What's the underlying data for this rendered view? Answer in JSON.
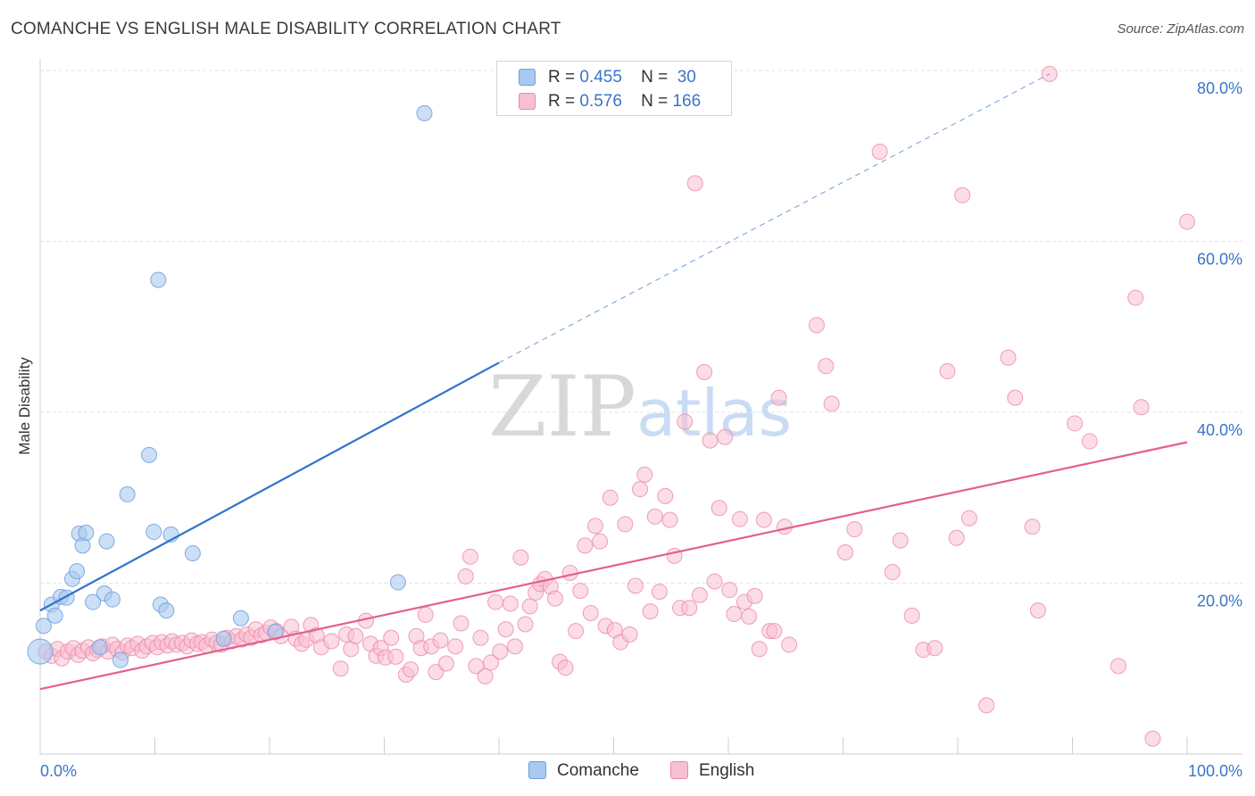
{
  "header": {
    "title": "COMANCHE VS ENGLISH MALE DISABILITY CORRELATION CHART",
    "source": "Source: ZipAtlas.com"
  },
  "watermark": {
    "zip": "ZIP",
    "atlas": "atlas"
  },
  "stats": [
    {
      "r_label": "R =",
      "r_value": "0.455",
      "n_label": "N =",
      "n_value": "30",
      "color": "#a9c9f0",
      "border": "#6d9fdc"
    },
    {
      "r_label": "R =",
      "r_value": "0.576",
      "n_label": "N =",
      "n_value": "166",
      "color": "#f9c0d2",
      "border": "#e889a8"
    }
  ],
  "legend": [
    {
      "label": "Comanche",
      "color": "#a9c9f0",
      "border": "#6d9fdc"
    },
    {
      "label": "English",
      "color": "#f9c0d2",
      "border": "#e889a8"
    }
  ],
  "colors": {
    "comanche_fill": "#a9c9f0",
    "comanche_stroke": "#6d9fdc",
    "comanche_line": "#2f73cc",
    "english_fill": "#f9c0d2",
    "english_stroke": "#e889a8",
    "english_line": "#e3608c",
    "axis_label": "#3a74c8",
    "grid": "#e3e3e3"
  },
  "chart_data": {
    "type": "scatter",
    "title": "COMANCHE VS ENGLISH MALE DISABILITY CORRELATION CHART",
    "xlabel": "",
    "ylabel": "Male Disability",
    "xlim": [
      0,
      100
    ],
    "ylim": [
      0,
      80
    ],
    "x_tick_labels": [
      {
        "value": 0,
        "label": "0.0%"
      },
      {
        "value": 100,
        "label": "100.0%"
      }
    ],
    "y_tick_labels": [
      {
        "value": 20,
        "label": "20.0%"
      },
      {
        "value": 40,
        "label": "40.0%"
      },
      {
        "value": 60,
        "label": "60.0%"
      },
      {
        "value": 80,
        "label": "80.0%"
      }
    ],
    "grid": true,
    "series": [
      {
        "name": "Comanche",
        "r": 0.455,
        "n": 30,
        "trend": {
          "x0": 0,
          "y0": 16.8,
          "x1": 40,
          "y1": 45.8,
          "dashed_to_x": 88,
          "dashed_to_y": 79.6
        },
        "points": [
          [
            0.0,
            12.0
          ],
          [
            0.3,
            15.0
          ],
          [
            1.0,
            17.5
          ],
          [
            1.3,
            16.2
          ],
          [
            1.8,
            18.4
          ],
          [
            2.3,
            18.3
          ],
          [
            2.8,
            20.5
          ],
          [
            3.2,
            21.4
          ],
          [
            3.4,
            25.8
          ],
          [
            3.7,
            24.4
          ],
          [
            4.0,
            25.9
          ],
          [
            4.6,
            17.8
          ],
          [
            5.6,
            18.8
          ],
          [
            5.8,
            24.9
          ],
          [
            6.3,
            18.1
          ],
          [
            5.2,
            12.5
          ],
          [
            7.0,
            11.0
          ],
          [
            7.6,
            30.4
          ],
          [
            9.5,
            35.0
          ],
          [
            9.9,
            26.0
          ],
          [
            10.3,
            55.5
          ],
          [
            10.5,
            17.5
          ],
          [
            11.0,
            16.8
          ],
          [
            11.4,
            25.7
          ],
          [
            13.3,
            23.5
          ],
          [
            16.0,
            13.5
          ],
          [
            17.5,
            15.9
          ],
          [
            20.5,
            14.3
          ],
          [
            31.2,
            20.1
          ],
          [
            33.5,
            75.0
          ]
        ]
      },
      {
        "name": "English",
        "r": 0.576,
        "n": 166,
        "trend": {
          "x0": 0,
          "y0": 7.6,
          "x1": 100,
          "y1": 36.5
        },
        "points": [
          [
            0.5,
            12.0
          ],
          [
            1.0,
            11.5
          ],
          [
            1.5,
            12.3
          ],
          [
            1.9,
            11.2
          ],
          [
            2.4,
            12.0
          ],
          [
            2.9,
            12.4
          ],
          [
            3.3,
            11.6
          ],
          [
            3.7,
            12.1
          ],
          [
            4.2,
            12.5
          ],
          [
            4.6,
            11.8
          ],
          [
            5.0,
            12.2
          ],
          [
            5.4,
            12.6
          ],
          [
            5.9,
            12.0
          ],
          [
            6.3,
            12.8
          ],
          [
            6.7,
            12.3
          ],
          [
            7.2,
            11.9
          ],
          [
            7.6,
            12.7
          ],
          [
            8.0,
            12.4
          ],
          [
            8.5,
            12.9
          ],
          [
            8.9,
            12.1
          ],
          [
            9.3,
            12.6
          ],
          [
            9.8,
            13.0
          ],
          [
            10.2,
            12.5
          ],
          [
            10.6,
            13.1
          ],
          [
            11.1,
            12.7
          ],
          [
            11.5,
            13.2
          ],
          [
            11.9,
            12.8
          ],
          [
            12.4,
            13.0
          ],
          [
            12.8,
            12.6
          ],
          [
            13.2,
            13.3
          ],
          [
            13.7,
            12.9
          ],
          [
            14.1,
            13.1
          ],
          [
            14.5,
            12.7
          ],
          [
            15.0,
            13.4
          ],
          [
            15.4,
            13.0
          ],
          [
            15.8,
            12.8
          ],
          [
            16.3,
            13.6
          ],
          [
            16.7,
            13.2
          ],
          [
            17.1,
            13.8
          ],
          [
            17.6,
            13.4
          ],
          [
            18.0,
            14.0
          ],
          [
            18.4,
            13.6
          ],
          [
            18.8,
            14.6
          ],
          [
            19.3,
            13.9
          ],
          [
            19.7,
            14.2
          ],
          [
            20.1,
            14.8
          ],
          [
            20.6,
            14.4
          ],
          [
            21.0,
            13.8
          ],
          [
            21.9,
            14.9
          ],
          [
            22.3,
            13.5
          ],
          [
            22.8,
            12.9
          ],
          [
            23.2,
            13.4
          ],
          [
            23.6,
            15.1
          ],
          [
            24.1,
            13.9
          ],
          [
            24.5,
            12.5
          ],
          [
            25.4,
            13.2
          ],
          [
            26.2,
            10.0
          ],
          [
            26.7,
            14.0
          ],
          [
            27.1,
            12.3
          ],
          [
            27.5,
            13.8
          ],
          [
            28.4,
            15.6
          ],
          [
            28.8,
            12.9
          ],
          [
            29.3,
            11.5
          ],
          [
            29.7,
            12.4
          ],
          [
            30.1,
            11.3
          ],
          [
            30.6,
            13.6
          ],
          [
            31.0,
            11.4
          ],
          [
            31.9,
            9.3
          ],
          [
            32.3,
            9.9
          ],
          [
            32.8,
            13.8
          ],
          [
            33.2,
            12.4
          ],
          [
            33.6,
            16.3
          ],
          [
            34.1,
            12.6
          ],
          [
            34.5,
            9.6
          ],
          [
            34.9,
            13.3
          ],
          [
            35.4,
            10.6
          ],
          [
            36.2,
            12.6
          ],
          [
            36.7,
            15.3
          ],
          [
            37.1,
            20.8
          ],
          [
            37.5,
            23.1
          ],
          [
            38.0,
            10.3
          ],
          [
            38.4,
            13.6
          ],
          [
            38.8,
            9.1
          ],
          [
            39.3,
            10.7
          ],
          [
            39.7,
            17.8
          ],
          [
            40.1,
            12.0
          ],
          [
            40.6,
            14.6
          ],
          [
            41.0,
            17.6
          ],
          [
            41.4,
            12.6
          ],
          [
            41.9,
            23.0
          ],
          [
            42.3,
            15.2
          ],
          [
            42.7,
            17.3
          ],
          [
            43.2,
            18.9
          ],
          [
            43.6,
            19.9
          ],
          [
            44.0,
            20.5
          ],
          [
            44.5,
            19.6
          ],
          [
            44.9,
            18.2
          ],
          [
            45.3,
            10.8
          ],
          [
            45.8,
            10.1
          ],
          [
            46.2,
            21.2
          ],
          [
            46.7,
            14.4
          ],
          [
            47.1,
            19.1
          ],
          [
            47.5,
            24.4
          ],
          [
            48.0,
            16.5
          ],
          [
            48.4,
            26.7
          ],
          [
            48.8,
            24.9
          ],
          [
            49.3,
            15.0
          ],
          [
            49.7,
            30.0
          ],
          [
            50.1,
            14.5
          ],
          [
            50.6,
            13.1
          ],
          [
            51.0,
            26.9
          ],
          [
            51.4,
            14.0
          ],
          [
            51.9,
            19.7
          ],
          [
            52.3,
            31.0
          ],
          [
            52.7,
            32.7
          ],
          [
            53.2,
            16.7
          ],
          [
            53.6,
            27.8
          ],
          [
            54.0,
            19.0
          ],
          [
            54.5,
            30.2
          ],
          [
            54.9,
            27.4
          ],
          [
            55.3,
            23.2
          ],
          [
            55.8,
            17.1
          ],
          [
            56.2,
            38.9
          ],
          [
            56.6,
            17.1
          ],
          [
            57.1,
            66.8
          ],
          [
            57.5,
            18.6
          ],
          [
            57.9,
            44.7
          ],
          [
            58.4,
            36.7
          ],
          [
            58.8,
            20.2
          ],
          [
            59.2,
            28.8
          ],
          [
            59.7,
            37.1
          ],
          [
            60.1,
            19.2
          ],
          [
            60.5,
            16.4
          ],
          [
            61.0,
            27.5
          ],
          [
            61.4,
            17.8
          ],
          [
            61.8,
            16.1
          ],
          [
            62.3,
            18.5
          ],
          [
            62.7,
            12.3
          ],
          [
            63.1,
            27.4
          ],
          [
            63.6,
            14.4
          ],
          [
            64.0,
            14.4
          ],
          [
            64.4,
            41.7
          ],
          [
            64.9,
            26.6
          ],
          [
            65.3,
            12.8
          ],
          [
            67.7,
            50.2
          ],
          [
            68.5,
            45.4
          ],
          [
            69.0,
            41.0
          ],
          [
            70.2,
            23.6
          ],
          [
            71.0,
            26.3
          ],
          [
            73.2,
            70.5
          ],
          [
            74.3,
            21.3
          ],
          [
            75.0,
            25.0
          ],
          [
            76.0,
            16.2
          ],
          [
            77.0,
            12.2
          ],
          [
            78.0,
            12.4
          ],
          [
            79.1,
            44.8
          ],
          [
            79.9,
            25.3
          ],
          [
            80.4,
            65.4
          ],
          [
            81.0,
            27.6
          ],
          [
            82.5,
            5.7
          ],
          [
            84.4,
            46.4
          ],
          [
            85.0,
            41.7
          ],
          [
            86.5,
            26.6
          ],
          [
            87.0,
            16.8
          ],
          [
            88.0,
            79.6
          ],
          [
            90.2,
            38.7
          ],
          [
            91.5,
            36.6
          ],
          [
            94.0,
            10.3
          ],
          [
            95.5,
            53.4
          ],
          [
            96.0,
            40.6
          ],
          [
            97.0,
            1.8
          ],
          [
            100.0,
            62.3
          ]
        ]
      }
    ]
  }
}
